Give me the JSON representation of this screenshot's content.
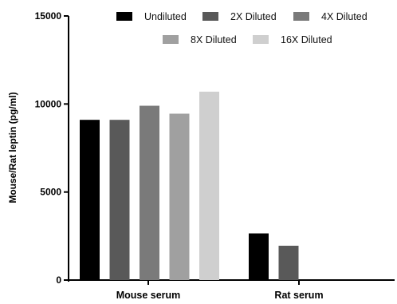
{
  "chart_data": {
    "type": "bar",
    "title": "",
    "xlabel": "",
    "ylabel": "Mouse/Rat leptin (pg/ml)",
    "ylim": [
      0,
      15000
    ],
    "yticks": [
      "0",
      "5000",
      "10000",
      "15000"
    ],
    "ytick_values": [
      0,
      5000,
      10000,
      15000
    ],
    "categories": [
      "Mouse serum",
      "Rat serum"
    ],
    "grid": false,
    "legend_position": "top",
    "series": [
      {
        "name": "Undiluted",
        "color": "#000000",
        "values": [
          9100,
          2650
        ]
      },
      {
        "name": "2X Diluted",
        "color": "#595959",
        "values": [
          9100,
          1950
        ]
      },
      {
        "name": "4X Diluted",
        "color": "#7a7a7a",
        "values": [
          9900,
          0
        ]
      },
      {
        "name": "8X Diluted",
        "color": "#a0a0a0",
        "values": [
          9450,
          0
        ]
      },
      {
        "name": "16X Diluted",
        "color": "#cfcfcf",
        "values": [
          10700,
          0
        ]
      }
    ]
  }
}
